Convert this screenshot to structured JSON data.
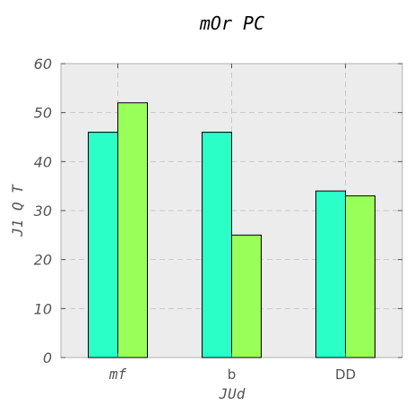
{
  "chart_data": {
    "type": "bar",
    "title": "mOr PC",
    "xlabel": "JUd",
    "ylabel": "J1 Q T",
    "categories": [
      "mf",
      "b",
      "DD"
    ],
    "series": [
      {
        "values": [
          46,
          46,
          34
        ],
        "color": "#2affc8"
      },
      {
        "values": [
          52,
          25,
          33
        ],
        "color": "#99ff59"
      }
    ],
    "ylim": [
      0,
      60
    ],
    "yticks": [
      "0",
      "10",
      "20",
      "30",
      "40",
      "50",
      "60"
    ],
    "grid": true,
    "background": "#ececec"
  }
}
